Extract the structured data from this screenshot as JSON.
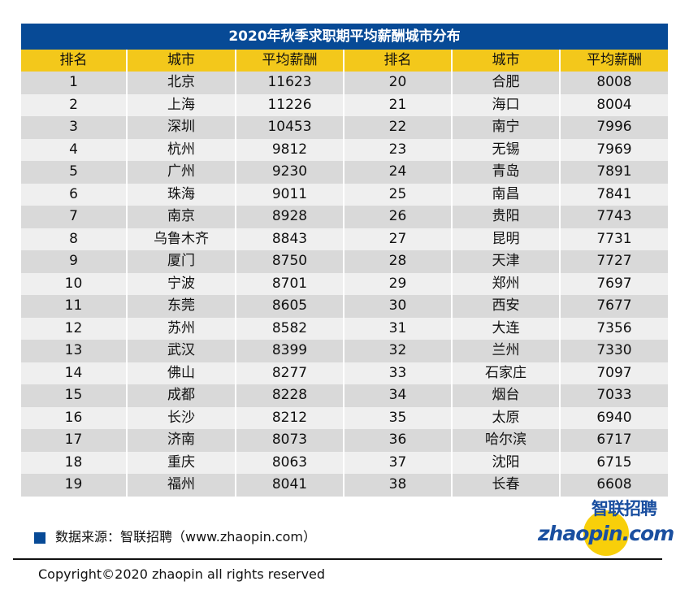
{
  "title": "2020年秋季求职期平均薪酬城市分布",
  "headers": [
    "排名",
    "城市",
    "平均薪酬",
    "排名",
    "城市",
    "平均薪酬"
  ],
  "left": [
    [
      "1",
      "北京",
      "11623"
    ],
    [
      "2",
      "上海",
      "11226"
    ],
    [
      "3",
      "深圳",
      "10453"
    ],
    [
      "4",
      "杭州",
      "9812"
    ],
    [
      "5",
      "广州",
      "9230"
    ],
    [
      "6",
      "珠海",
      "9011"
    ],
    [
      "7",
      "南京",
      "8928"
    ],
    [
      "8",
      "乌鲁木齐",
      "8843"
    ],
    [
      "9",
      "厦门",
      "8750"
    ],
    [
      "10",
      "宁波",
      "8701"
    ],
    [
      "11",
      "东莞",
      "8605"
    ],
    [
      "12",
      "苏州",
      "8582"
    ],
    [
      "13",
      "武汉",
      "8399"
    ],
    [
      "14",
      "佛山",
      "8277"
    ],
    [
      "15",
      "成都",
      "8228"
    ],
    [
      "16",
      "长沙",
      "8212"
    ],
    [
      "17",
      "济南",
      "8073"
    ],
    [
      "18",
      "重庆",
      "8063"
    ],
    [
      "19",
      "福州",
      "8041"
    ]
  ],
  "right": [
    [
      "20",
      "合肥",
      "8008"
    ],
    [
      "21",
      "海口",
      "8004"
    ],
    [
      "22",
      "南宁",
      "7996"
    ],
    [
      "23",
      "无锡",
      "7969"
    ],
    [
      "24",
      "青岛",
      "7891"
    ],
    [
      "25",
      "南昌",
      "7841"
    ],
    [
      "26",
      "贵阳",
      "7743"
    ],
    [
      "27",
      "昆明",
      "7731"
    ],
    [
      "28",
      "天津",
      "7727"
    ],
    [
      "29",
      "郑州",
      "7697"
    ],
    [
      "30",
      "西安",
      "7677"
    ],
    [
      "31",
      "大连",
      "7356"
    ],
    [
      "32",
      "兰州",
      "7330"
    ],
    [
      "33",
      "石家庄",
      "7097"
    ],
    [
      "34",
      "烟台",
      "7033"
    ],
    [
      "35",
      "太原",
      "6940"
    ],
    [
      "36",
      "哈尔滨",
      "6717"
    ],
    [
      "37",
      "沈阳",
      "6715"
    ],
    [
      "38",
      "长春",
      "6608"
    ]
  ],
  "source": "数据来源：智联招聘（www.zhaopin.com）",
  "copyright": "Copyright©2020 zhaopin all rights reserved",
  "logo": {
    "cn": "智联招聘",
    "en": "zhaopin.com"
  },
  "colors": {
    "title_bg": "#074a96",
    "header_bg": "#f3c81b",
    "row_dark": "#d9d9d9",
    "row_light": "#efefef"
  }
}
